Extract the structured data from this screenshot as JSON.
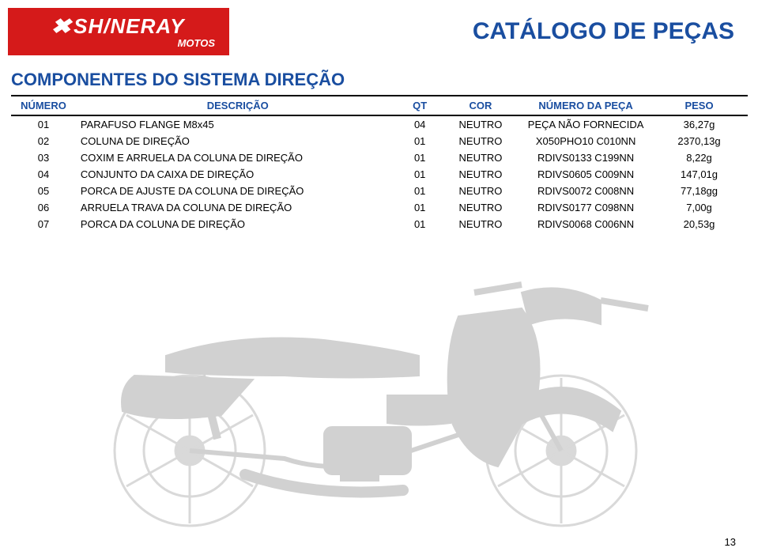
{
  "header": {
    "logo_brand": "SH/NERAY",
    "logo_sub": "MOTOS",
    "catalog_title": "CATÁLOGO DE PEÇAS"
  },
  "section_title": "COMPONENTES DO SISTEMA DIREÇÃO",
  "table": {
    "columns": {
      "numero": "NÚMERO",
      "descricao": "DESCRIÇÃO",
      "qt": "QT",
      "cor": "COR",
      "numero_peca": "NÚMERO DA PEÇA",
      "peso": "PESO"
    },
    "rows": [
      {
        "numero": "01",
        "descricao": "PARAFUSO FLANGE M8x45",
        "qt": "04",
        "cor": "NEUTRO",
        "numero_peca": "PEÇA NÃO FORNECIDA",
        "peso": "36,27g"
      },
      {
        "numero": "02",
        "descricao": "COLUNA DE DIREÇÃO",
        "qt": "01",
        "cor": "NEUTRO",
        "numero_peca": "X050PHO10   C010NN",
        "peso": "2370,13g"
      },
      {
        "numero": "03",
        "descricao": "COXIM E ARRUELA DA COLUNA DE DIREÇÃO",
        "qt": "01",
        "cor": "NEUTRO",
        "numero_peca": "RDIVS0133   C199NN",
        "peso": "8,22g"
      },
      {
        "numero": "04",
        "descricao": "CONJUNTO DA CAIXA DE DIREÇÃO",
        "qt": "01",
        "cor": "NEUTRO",
        "numero_peca": "RDIVS0605   C009NN",
        "peso": "147,01g"
      },
      {
        "numero": "05",
        "descricao": "PORCA DE AJUSTE DA COLUNA DE DIREÇÃO",
        "qt": "01",
        "cor": "NEUTRO",
        "numero_peca": "RDIVS0072   C008NN",
        "peso": "77,18gg"
      },
      {
        "numero": "06",
        "descricao": "ARRUELA TRAVA DA COLUNA DE DIREÇÃO",
        "qt": "01",
        "cor": "NEUTRO",
        "numero_peca": "RDIVS0177   C098NN",
        "peso": "7,00g"
      },
      {
        "numero": "07",
        "descricao": "PORCA DA COLUNA DE DIREÇÃO",
        "qt": "01",
        "cor": "NEUTRO",
        "numero_peca": "RDIVS0068   C006NN",
        "peso": "20,53g"
      }
    ]
  },
  "page_number": "13",
  "colors": {
    "brand_red": "#d51a1a",
    "title_blue": "#1a4ea0",
    "text_black": "#000000",
    "background": "#ffffff",
    "watermark_gray": "#808080"
  }
}
